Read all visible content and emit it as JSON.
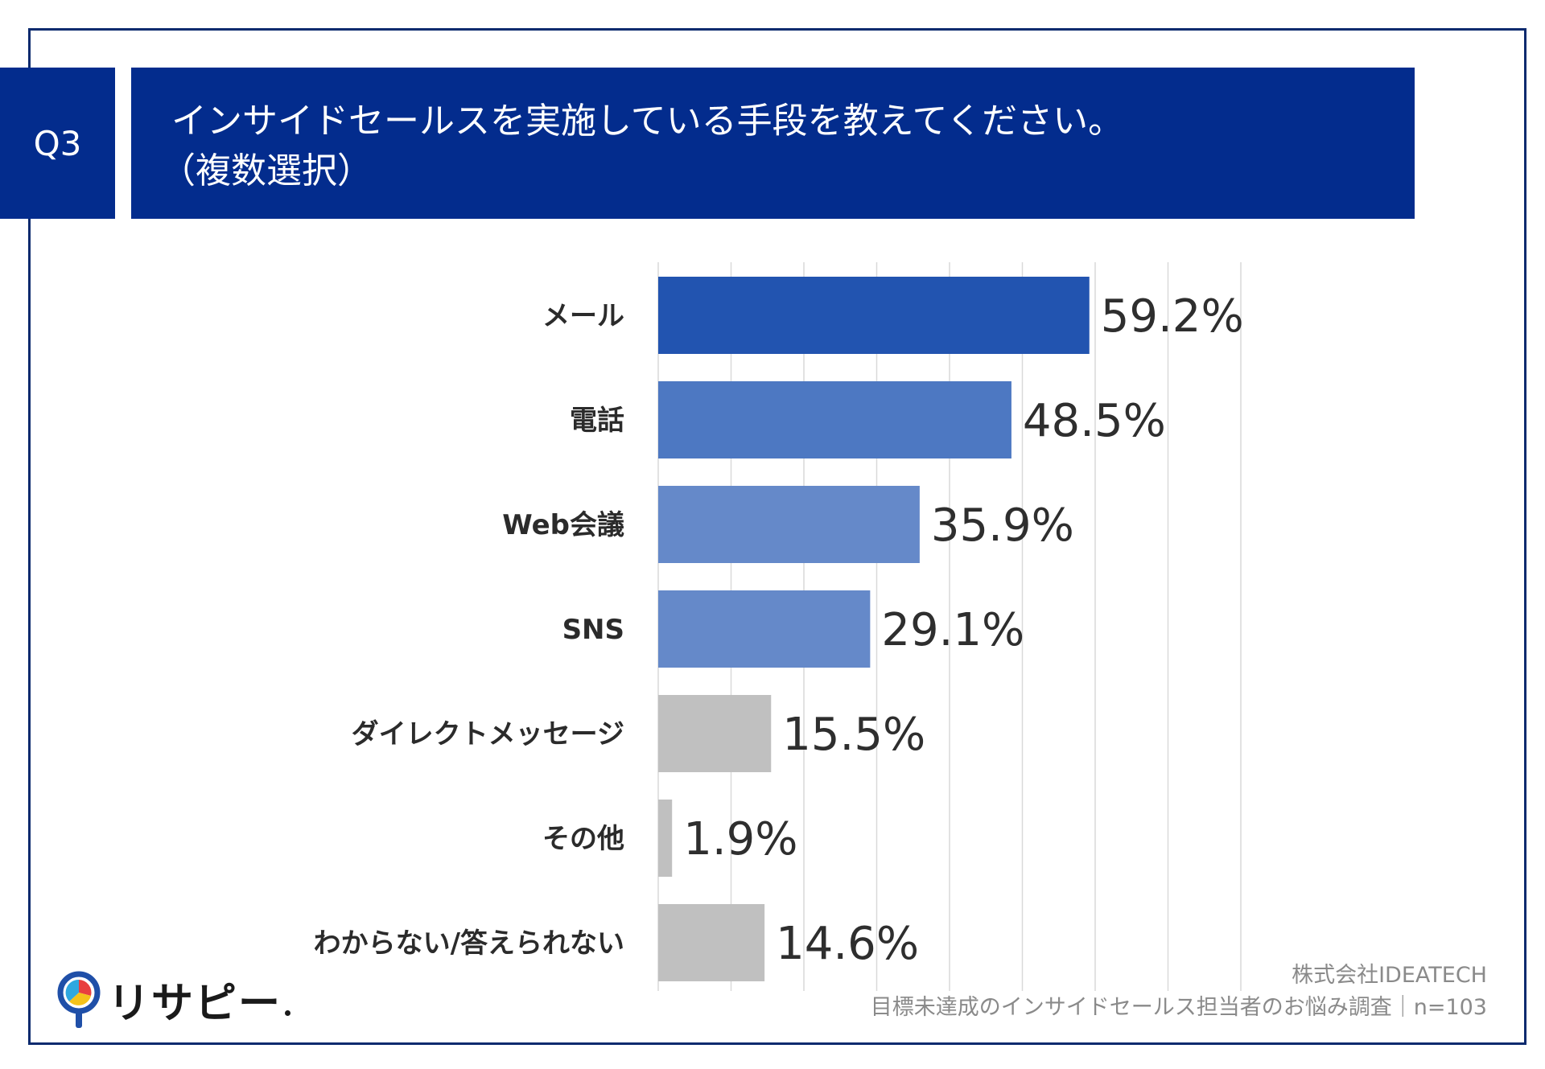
{
  "header": {
    "badge": "Q3",
    "question": "インサイドセールスを実施している手段を教えてください。",
    "note": "（複数選択）"
  },
  "colors": {
    "navy": "#032c8d",
    "bar_primary": "#2254b0",
    "bar_mid": "#4d78c2",
    "bar_light": "#6589c9",
    "bar_gray": "#c0c0c0"
  },
  "chart_data": {
    "type": "bar",
    "orientation": "horizontal",
    "categories": [
      "メール",
      "電話",
      "Web会議",
      "SNS",
      "ダイレクトメッセージ",
      "その他",
      "わからない/答えられない"
    ],
    "values": [
      59.2,
      48.5,
      35.9,
      29.1,
      15.5,
      1.9,
      14.6
    ],
    "value_labels": [
      "59.2%",
      "48.5%",
      "35.9%",
      "29.1%",
      "15.5%",
      "1.9%",
      "14.6%"
    ],
    "bar_colors": [
      "#2254b0",
      "#4d78c2",
      "#6589c9",
      "#6589c9",
      "#c0c0c0",
      "#c0c0c0",
      "#c0c0c0"
    ],
    "xlim": [
      0,
      80
    ],
    "gridlines": [
      0,
      10,
      20,
      30,
      40,
      50,
      60,
      70,
      80
    ],
    "grid": true,
    "legend": "none"
  },
  "brand": {
    "name": "リサピー"
  },
  "footer": {
    "company": "株式会社IDEATECH",
    "survey": "目標未達成のインサイドセールス担当者のお悩み調査｜n=103"
  }
}
